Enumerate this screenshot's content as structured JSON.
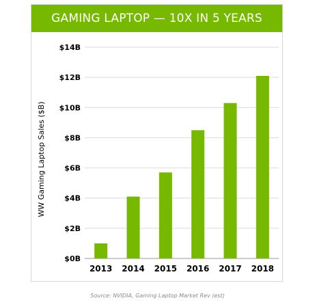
{
  "chart_data": {
    "type": "bar",
    "title": "GAMING LAPTOP — 10X IN 5 YEARS",
    "ylabel": "WW Gaming Laptop Sales ($B)",
    "xlabel": "",
    "categories": [
      "2013",
      "2014",
      "2015",
      "2016",
      "2017",
      "2018"
    ],
    "values": [
      1.0,
      4.1,
      5.7,
      8.5,
      10.3,
      12.1
    ],
    "ylim": [
      0,
      14
    ],
    "yticks": [
      0,
      2,
      4,
      6,
      8,
      10,
      12,
      14
    ],
    "ytick_labels": [
      "$0B",
      "$2B",
      "$4B",
      "$6B",
      "$8B",
      "$10B",
      "$12B",
      "$14B"
    ],
    "grid": true,
    "bar_color": "#76b900",
    "header_color": "#76b900"
  },
  "source": "Source: NVIDIA, Gaming Laptop Market Rev (est)"
}
